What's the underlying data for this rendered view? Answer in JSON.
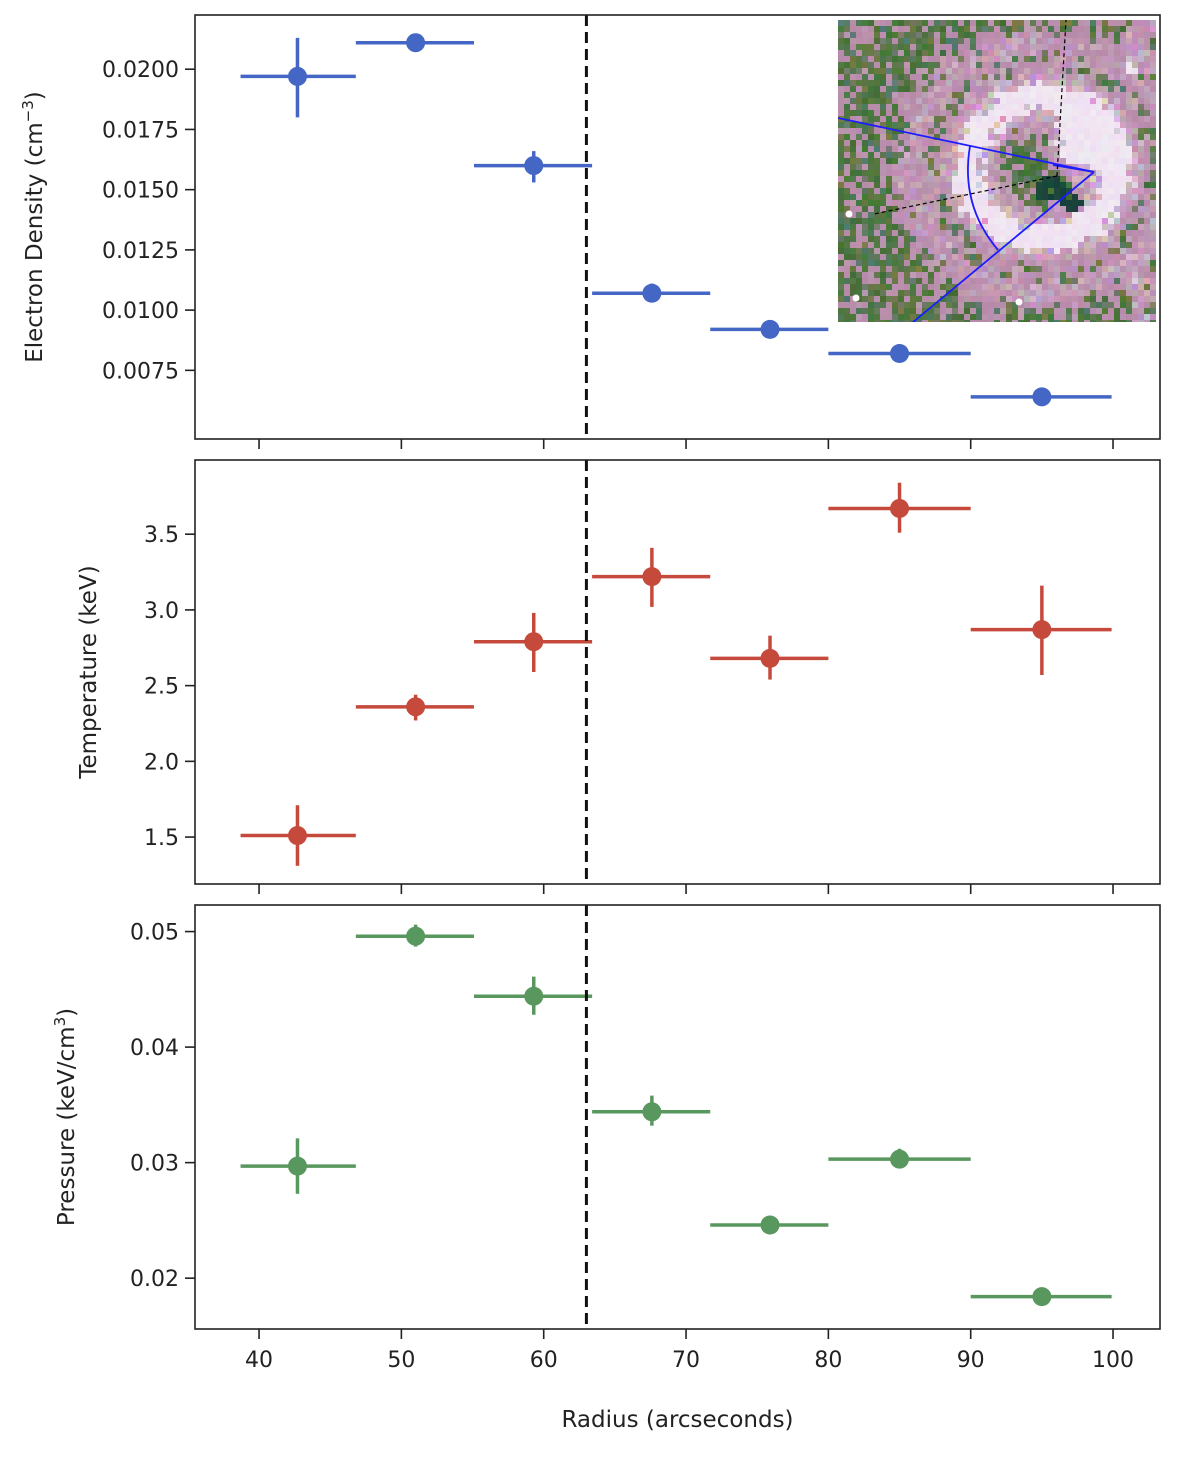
{
  "chart_data": [
    {
      "type": "scatter",
      "panel": "top",
      "ylabel": "Electron Density (cm",
      "ylabel_sup": "−3",
      "ylabel_close": ")",
      "xlabel": "",
      "xlim": [
        35.5,
        103.3
      ],
      "ylim": [
        0.00465,
        0.02225
      ],
      "yticks": [
        0.0075,
        0.01,
        0.0125,
        0.015,
        0.0175,
        0.02
      ],
      "ytick_labels": [
        "0.0075",
        "0.0100",
        "0.0125",
        "0.0150",
        "0.0175",
        "0.0200"
      ],
      "color": "#4466c4",
      "points": [
        {
          "x": 42.7,
          "xerr": [
            38.7,
            46.8
          ],
          "y": 0.0197,
          "yerr": [
            0.018,
            0.0213
          ]
        },
        {
          "x": 51.0,
          "xerr": [
            46.8,
            55.1
          ],
          "y": 0.0211,
          "yerr": [
            0.0208,
            0.0214
          ]
        },
        {
          "x": 59.3,
          "xerr": [
            55.1,
            63.4
          ],
          "y": 0.016,
          "yerr": [
            0.0153,
            0.0166
          ]
        },
        {
          "x": 67.6,
          "xerr": [
            63.4,
            71.7
          ],
          "y": 0.0107,
          "yerr": [
            0.0104,
            0.0111
          ]
        },
        {
          "x": 75.9,
          "xerr": [
            71.7,
            80.0
          ],
          "y": 0.0092,
          "yerr": [
            0.0089,
            0.0094
          ]
        },
        {
          "x": 85.0,
          "xerr": [
            80.0,
            90.0
          ],
          "y": 0.0082,
          "yerr": [
            0.008,
            0.0085
          ]
        },
        {
          "x": 95.0,
          "xerr": [
            90.0,
            99.9
          ],
          "y": 0.0064,
          "yerr": [
            0.0062,
            0.0066
          ]
        }
      ],
      "vline": 63.0,
      "inset": "x-ray-image-inset"
    },
    {
      "type": "scatter",
      "panel": "middle",
      "ylabel": "Temperature (keV)",
      "xlabel": "",
      "xlim": [
        35.5,
        103.3
      ],
      "ylim": [
        1.19,
        3.99
      ],
      "yticks": [
        1.5,
        2.0,
        2.5,
        3.0,
        3.5
      ],
      "ytick_labels": [
        "1.5",
        "2.0",
        "2.5",
        "3.0",
        "3.5"
      ],
      "color": "#c64a3c",
      "points": [
        {
          "x": 42.7,
          "xerr": [
            38.7,
            46.8
          ],
          "y": 1.51,
          "yerr": [
            1.31,
            1.71
          ]
        },
        {
          "x": 51.0,
          "xerr": [
            46.8,
            55.1
          ],
          "y": 2.36,
          "yerr": [
            2.27,
            2.44
          ]
        },
        {
          "x": 59.3,
          "xerr": [
            55.1,
            63.4
          ],
          "y": 2.79,
          "yerr": [
            2.59,
            2.98
          ]
        },
        {
          "x": 67.6,
          "xerr": [
            63.4,
            71.7
          ],
          "y": 3.22,
          "yerr": [
            3.02,
            3.41
          ]
        },
        {
          "x": 75.9,
          "xerr": [
            71.7,
            80.0
          ],
          "y": 2.68,
          "yerr": [
            2.54,
            2.83
          ]
        },
        {
          "x": 85.0,
          "xerr": [
            80.0,
            90.0
          ],
          "y": 3.67,
          "yerr": [
            3.51,
            3.84
          ]
        },
        {
          "x": 95.0,
          "xerr": [
            90.0,
            99.9
          ],
          "y": 2.87,
          "yerr": [
            2.57,
            3.16
          ]
        }
      ],
      "vline": 63.0
    },
    {
      "type": "scatter",
      "panel": "bottom",
      "ylabel": "Pressure (keV/cm",
      "ylabel_sup": "3",
      "ylabel_close": ")",
      "xlabel": "Radius (arcseconds)",
      "xlim": [
        35.5,
        103.3
      ],
      "ylim": [
        0.0156,
        0.0523
      ],
      "yticks": [
        0.02,
        0.03,
        0.04,
        0.05
      ],
      "ytick_labels": [
        "0.02",
        "0.03",
        "0.04",
        "0.05"
      ],
      "xticks": [
        40,
        50,
        60,
        70,
        80,
        90,
        100
      ],
      "xtick_labels": [
        "40",
        "50",
        "60",
        "70",
        "80",
        "90",
        "100"
      ],
      "color": "#58975e",
      "points": [
        {
          "x": 42.7,
          "xerr": [
            38.7,
            46.8
          ],
          "y": 0.0297,
          "yerr": [
            0.0273,
            0.0321
          ]
        },
        {
          "x": 51.0,
          "xerr": [
            46.8,
            55.1
          ],
          "y": 0.0496,
          "yerr": [
            0.0487,
            0.0506
          ]
        },
        {
          "x": 59.3,
          "xerr": [
            55.1,
            63.4
          ],
          "y": 0.0444,
          "yerr": [
            0.0428,
            0.0461
          ]
        },
        {
          "x": 67.6,
          "xerr": [
            63.4,
            71.7
          ],
          "y": 0.0344,
          "yerr": [
            0.0332,
            0.0358
          ]
        },
        {
          "x": 75.9,
          "xerr": [
            71.7,
            80.0
          ],
          "y": 0.0246,
          "yerr": [
            0.0238,
            0.0253
          ]
        },
        {
          "x": 85.0,
          "xerr": [
            80.0,
            90.0
          ],
          "y": 0.0303,
          "yerr": [
            0.0295,
            0.0312
          ]
        },
        {
          "x": 95.0,
          "xerr": [
            90.0,
            99.9
          ],
          "y": 0.0184,
          "yerr": [
            0.0177,
            0.0191
          ]
        }
      ],
      "vline": 63.0
    }
  ]
}
